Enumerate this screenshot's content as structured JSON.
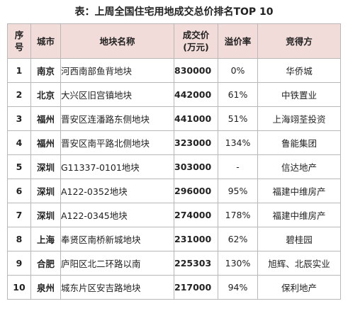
{
  "title": "表：上周全国住宅用地成交总价排名TOP 10",
  "table": {
    "headers": {
      "rank": [
        "序",
        "号"
      ],
      "city": "城市",
      "plot": "地块名称",
      "price": [
        "成交价",
        "(万元)"
      ],
      "premium": "溢价率",
      "buyer": "竞得方"
    },
    "rows": [
      {
        "rank": "1",
        "city": "南京",
        "plot": "河西南部鱼背地块",
        "price": "830000",
        "premium": "0%",
        "buyer": "华侨城"
      },
      {
        "rank": "2",
        "city": "北京",
        "plot": "大兴区旧宫镇地块",
        "price": "442000",
        "premium": "61%",
        "buyer": "中铁置业"
      },
      {
        "rank": "3",
        "city": "福州",
        "plot": "晋安区连潘路东侧地块",
        "price": "441000",
        "premium": "51%",
        "buyer": "上海翊荃投资"
      },
      {
        "rank": "4",
        "city": "福州",
        "plot": "晋安区南平路北侧地块",
        "price": "323000",
        "premium": "134%",
        "buyer": "鲁能集团"
      },
      {
        "rank": "5",
        "city": "深圳",
        "plot": "G11337-0101地块",
        "price": "303000",
        "premium": "-",
        "buyer": "信达地产"
      },
      {
        "rank": "6",
        "city": "深圳",
        "plot": "A122-0352地块",
        "price": "296000",
        "premium": "95%",
        "buyer": "福建中维房产"
      },
      {
        "rank": "7",
        "city": "深圳",
        "plot": "A122-0345地块",
        "price": "274000",
        "premium": "178%",
        "buyer": "福建中维房产"
      },
      {
        "rank": "8",
        "city": "上海",
        "plot": "奉贤区南桥新城地块",
        "price": "231000",
        "premium": "62%",
        "buyer": "碧桂园"
      },
      {
        "rank": "9",
        "city": "合肥",
        "plot": "庐阳区北二环路以南",
        "price": "225303",
        "premium": "130%",
        "buyer": "旭辉、北辰实业"
      },
      {
        "rank": "10",
        "city": "泉州",
        "plot": "城东片区安吉路地块",
        "price": "217000",
        "premium": "94%",
        "buyer": "保利地产"
      }
    ]
  }
}
